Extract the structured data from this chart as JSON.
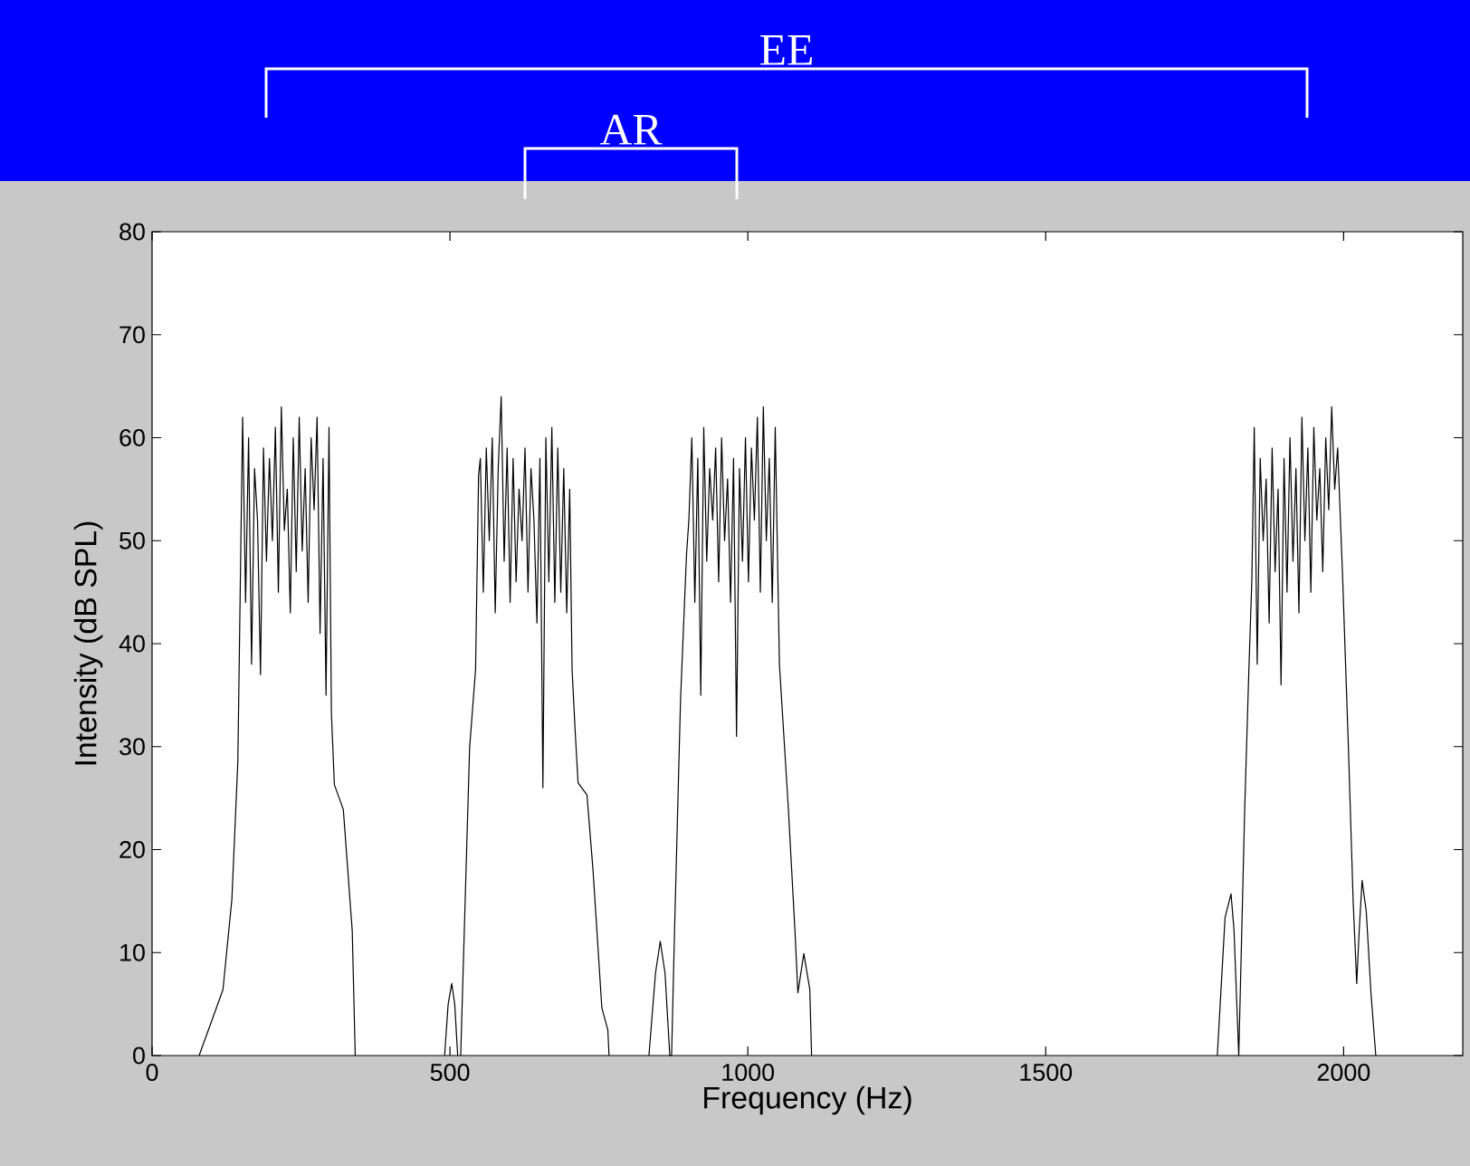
{
  "chart_data": {
    "type": "line",
    "xlabel": "Frequency (Hz)",
    "ylabel": "Intensity (dB SPL)",
    "xlim": [
      0,
      2200
    ],
    "ylim": [
      0,
      80
    ],
    "xticks": [
      0,
      500,
      1000,
      1500,
      2000
    ],
    "yticks": [
      0,
      10,
      20,
      30,
      40,
      50,
      60,
      70,
      80
    ],
    "annotations": [
      "EE",
      "AR"
    ],
    "series": [
      {
        "color": "#000000",
        "line_style": "solid",
        "x": [
          79,
          119,
          134,
          144,
          149,
          152,
          157,
          162,
          167,
          172,
          177,
          182,
          187,
          192,
          197,
          202,
          207,
          212,
          217,
          222,
          227,
          232,
          237,
          242,
          247,
          252,
          257,
          262,
          267,
          272,
          277,
          282,
          287,
          292,
          297,
          301,
          306,
          321,
          336,
          341,
          420,
          491,
          497,
          503,
          508,
          513,
          515,
          518,
          533,
          543,
          548,
          551,
          556,
          561,
          566,
          571,
          576,
          581,
          586,
          591,
          596,
          601,
          606,
          611,
          616,
          621,
          626,
          631,
          636,
          641,
          646,
          651,
          656,
          661,
          666,
          671,
          676,
          681,
          686,
          691,
          696,
          701,
          705,
          710,
          715,
          730,
          740,
          755,
          765,
          767,
          800,
          834,
          845,
          853,
          861,
          869,
          872,
          877,
          887,
          897,
          901,
          906,
          911,
          916,
          921,
          926,
          931,
          936,
          941,
          946,
          951,
          956,
          961,
          966,
          971,
          976,
          981,
          986,
          991,
          996,
          1001,
          1006,
          1011,
          1016,
          1021,
          1026,
          1031,
          1036,
          1041,
          1046,
          1053,
          1068,
          1079,
          1084,
          1094,
          1104,
          1107,
          1400,
          1788,
          1801,
          1811,
          1816,
          1824,
          1834,
          1841,
          1846,
          1850,
          1855,
          1860,
          1865,
          1870,
          1875,
          1880,
          1885,
          1890,
          1895,
          1900,
          1905,
          1910,
          1915,
          1920,
          1925,
          1930,
          1935,
          1940,
          1945,
          1950,
          1955,
          1960,
          1965,
          1970,
          1975,
          1980,
          1985,
          1990,
          1998,
          2008,
          2016,
          2022,
          2026,
          2031,
          2038,
          2046,
          2054
        ],
        "values": [
          0,
          6.4,
          15.2,
          28.6,
          49.6,
          62,
          44,
          60,
          38,
          57,
          52,
          37,
          59,
          48,
          58,
          50,
          61,
          45,
          63,
          51,
          55,
          43,
          60,
          47,
          62,
          49,
          57,
          44,
          60,
          53,
          62,
          41,
          58,
          35,
          61,
          33.3,
          26.3,
          23.9,
          12.1,
          0,
          null,
          0,
          5,
          7,
          5,
          0,
          null,
          0,
          29.9,
          37.5,
          56.3,
          58,
          45,
          59,
          50,
          60,
          43,
          57,
          64,
          48,
          59,
          44,
          58,
          46,
          55,
          50,
          59,
          45,
          57,
          52,
          42,
          58,
          26,
          60,
          46,
          61,
          44,
          59,
          45,
          57,
          43,
          55,
          37.5,
          31.7,
          26.5,
          25.3,
          18.1,
          4.6,
          2.5,
          0,
          null,
          0,
          8,
          11.1,
          8,
          0,
          0,
          12.2,
          34.5,
          48.6,
          52,
          60,
          44,
          58,
          35,
          61,
          48,
          57,
          52,
          59,
          46,
          60,
          50,
          56,
          44,
          58,
          31,
          57,
          48,
          60,
          46,
          59,
          52,
          62,
          45,
          63,
          50,
          58,
          44,
          61,
          38,
          24,
          12.2,
          6.1,
          9.9,
          6.4,
          0,
          null,
          0,
          13.4,
          15.7,
          12.2,
          0,
          24,
          37.5,
          46.3,
          61,
          38,
          58,
          50,
          56,
          42,
          59,
          47,
          55,
          36,
          58,
          45,
          60,
          48,
          57,
          43,
          62,
          50,
          59,
          45,
          61,
          52,
          57,
          47,
          60,
          53,
          63,
          55,
          59,
          47,
          30,
          15,
          7,
          12,
          17,
          14,
          6,
          0
        ]
      }
    ]
  }
}
